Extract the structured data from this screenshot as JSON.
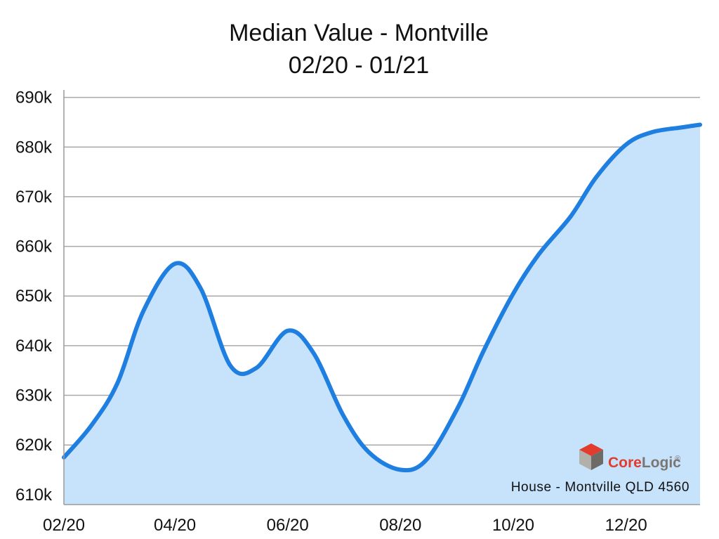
{
  "chart_data": {
    "type": "area",
    "title": "Median Value - Montville",
    "subtitle": "02/20 - 01/21",
    "xlabel": "",
    "ylabel": "",
    "x_tick_labels": [
      "02/20",
      "04/20",
      "06/20",
      "08/20",
      "10/20",
      "12/20"
    ],
    "y_tick_labels": [
      "690k",
      "680k",
      "670k",
      "660k",
      "650k",
      "640k",
      "630k",
      "620k",
      "610k"
    ],
    "ylim": [
      608000,
      691500
    ],
    "xlim": [
      "02/20",
      "01/21"
    ],
    "grid": true,
    "series": [
      {
        "color": "#1f7fe0",
        "fill": "#c7e2fb",
        "x": [
          "2020-02-01",
          "2020-02-16",
          "2020-03-01",
          "2020-03-15",
          "2020-04-01",
          "2020-04-15",
          "2020-05-01",
          "2020-05-15",
          "2020-06-01",
          "2020-06-15",
          "2020-07-01",
          "2020-07-15",
          "2020-08-01",
          "2020-08-15",
          "2020-09-01",
          "2020-09-15",
          "2020-10-01",
          "2020-10-15",
          "2020-11-01",
          "2020-11-15",
          "2020-12-01",
          "2020-12-15",
          "2021-01-01",
          "2021-01-10"
        ],
        "values": [
          617500,
          624000,
          632500,
          647000,
          656500,
          651500,
          636000,
          635500,
          643000,
          638500,
          626000,
          618500,
          615000,
          617000,
          627500,
          639000,
          650500,
          658500,
          666000,
          674000,
          680500,
          683000,
          684000,
          684500
        ]
      }
    ]
  },
  "branding": {
    "brand_name": "CoreLogic",
    "trademark": "®",
    "caption": "House - Montville QLD 4560",
    "logo_colors": [
      "#e23c2e",
      "#b2b0ab",
      "#6e6b67"
    ]
  }
}
